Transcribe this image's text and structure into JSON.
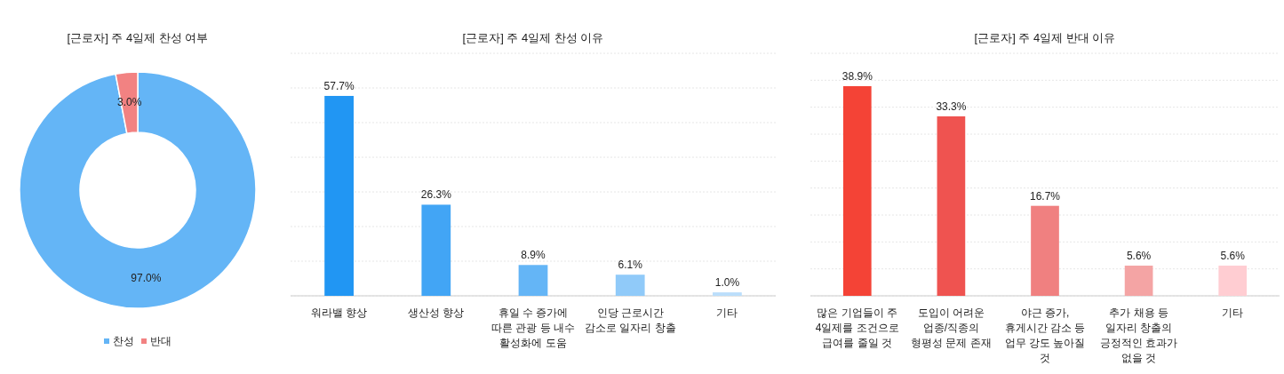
{
  "chart_data": [
    {
      "type": "donut",
      "title": "[근로자] 주 4일제 찬성 여부",
      "categories": [
        "찬성",
        "반대"
      ],
      "values": [
        97.0,
        3.0
      ],
      "colors": [
        "#64b5f6",
        "#f28282"
      ],
      "value_labels": [
        "97.0%",
        "3.0%"
      ],
      "legend": "bottom"
    },
    {
      "type": "bar",
      "title": "[근로자] 주 4일제 찬성 이유",
      "categories": [
        "워라밸 향상",
        "생산성 향상",
        "휴일 수 증가에 따른 관광 등 내수 활성화에 도움",
        "인당 근로시간 감소로 일자리 창출",
        "기타"
      ],
      "values": [
        57.7,
        26.3,
        8.9,
        6.1,
        1.0
      ],
      "colors": [
        "#2196f3",
        "#42a5f5",
        "#64b5f6",
        "#90caf9",
        "#bbdefb"
      ],
      "value_labels": [
        "57.7%",
        "26.3%",
        "8.9%",
        "6.1%",
        "1.0%"
      ],
      "ylim": [
        0,
        70
      ],
      "yticks": [
        {
          "value": 0,
          "label": null
        },
        {
          "value": 10,
          "label": null
        },
        {
          "value": 20,
          "label": null
        },
        {
          "value": 30,
          "label": null
        },
        {
          "value": 40,
          "label": null
        },
        {
          "value": 50,
          "label": null
        },
        {
          "value": 60,
          "label": null
        },
        {
          "value": 70,
          "label": null
        }
      ],
      "grid": "y",
      "tick_labels": "x"
    },
    {
      "type": "bar",
      "title": "[근로자] 주 4일제 반대 이유",
      "categories": [
        "많은 기업들이 주 4일제를 조건으로 급여를 줄일 것",
        "도입이 어려운 업종/직종의 형평성 문제 존재",
        "야근 증가, 휴게시간 감소 등 업무 강도 높아질 것",
        "추가 채용 등 일자리 창출의 긍정적인 효과가 없을 것",
        "기타"
      ],
      "values": [
        38.9,
        33.3,
        16.7,
        5.6,
        5.6
      ],
      "colors": [
        "#f44336",
        "#ef5350",
        "#f08080",
        "#f4a4a4",
        "#ffcdd2"
      ],
      "value_labels": [
        "38.9%",
        "33.3%",
        "16.7%",
        "5.6%",
        "5.6%"
      ],
      "ylim": [
        0,
        45
      ],
      "yticks": [
        {
          "value": 0,
          "label": null
        },
        {
          "value": 5,
          "label": null
        },
        {
          "value": 10,
          "label": null
        },
        {
          "value": 15,
          "label": null
        },
        {
          "value": 20,
          "label": null
        },
        {
          "value": 25,
          "label": null
        },
        {
          "value": 30,
          "label": null
        },
        {
          "value": 35,
          "label": null
        },
        {
          "value": 40,
          "label": null
        },
        {
          "value": 45,
          "label": null
        }
      ],
      "grid": "y",
      "tick_labels": "x"
    }
  ]
}
